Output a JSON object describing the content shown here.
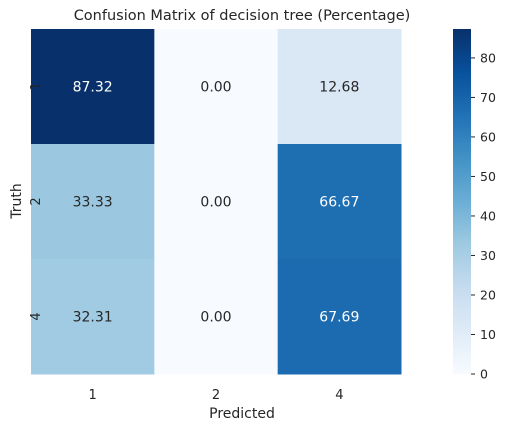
{
  "chart_data": {
    "type": "heatmap",
    "title": "Confusion Matrix of decision tree (Percentage)",
    "xlabel": "Predicted",
    "ylabel": "Truth",
    "x_categories": [
      "1",
      "2",
      "4"
    ],
    "y_categories": [
      "1",
      "2",
      "4"
    ],
    "values": [
      [
        87.32,
        0.0,
        12.68
      ],
      [
        33.33,
        0.0,
        66.67
      ],
      [
        32.31,
        0.0,
        67.69
      ]
    ],
    "cell_labels": [
      [
        "87.32",
        "0.00",
        "12.68"
      ],
      [
        "33.33",
        "0.00",
        "66.67"
      ],
      [
        "32.31",
        "0.00",
        "67.69"
      ]
    ],
    "colorbar": {
      "colormap": "Blues",
      "range": [
        0,
        87.32
      ],
      "ticks": [
        0,
        10,
        20,
        30,
        40,
        50,
        60,
        70,
        80
      ],
      "tick_labels": [
        "0",
        "10",
        "20",
        "30",
        "40",
        "50",
        "60",
        "70",
        "80"
      ]
    },
    "colors": {
      "low": "#f7fbff",
      "high": "#08306b",
      "text_dark": "#262626",
      "text_light": "#ffffff"
    }
  }
}
